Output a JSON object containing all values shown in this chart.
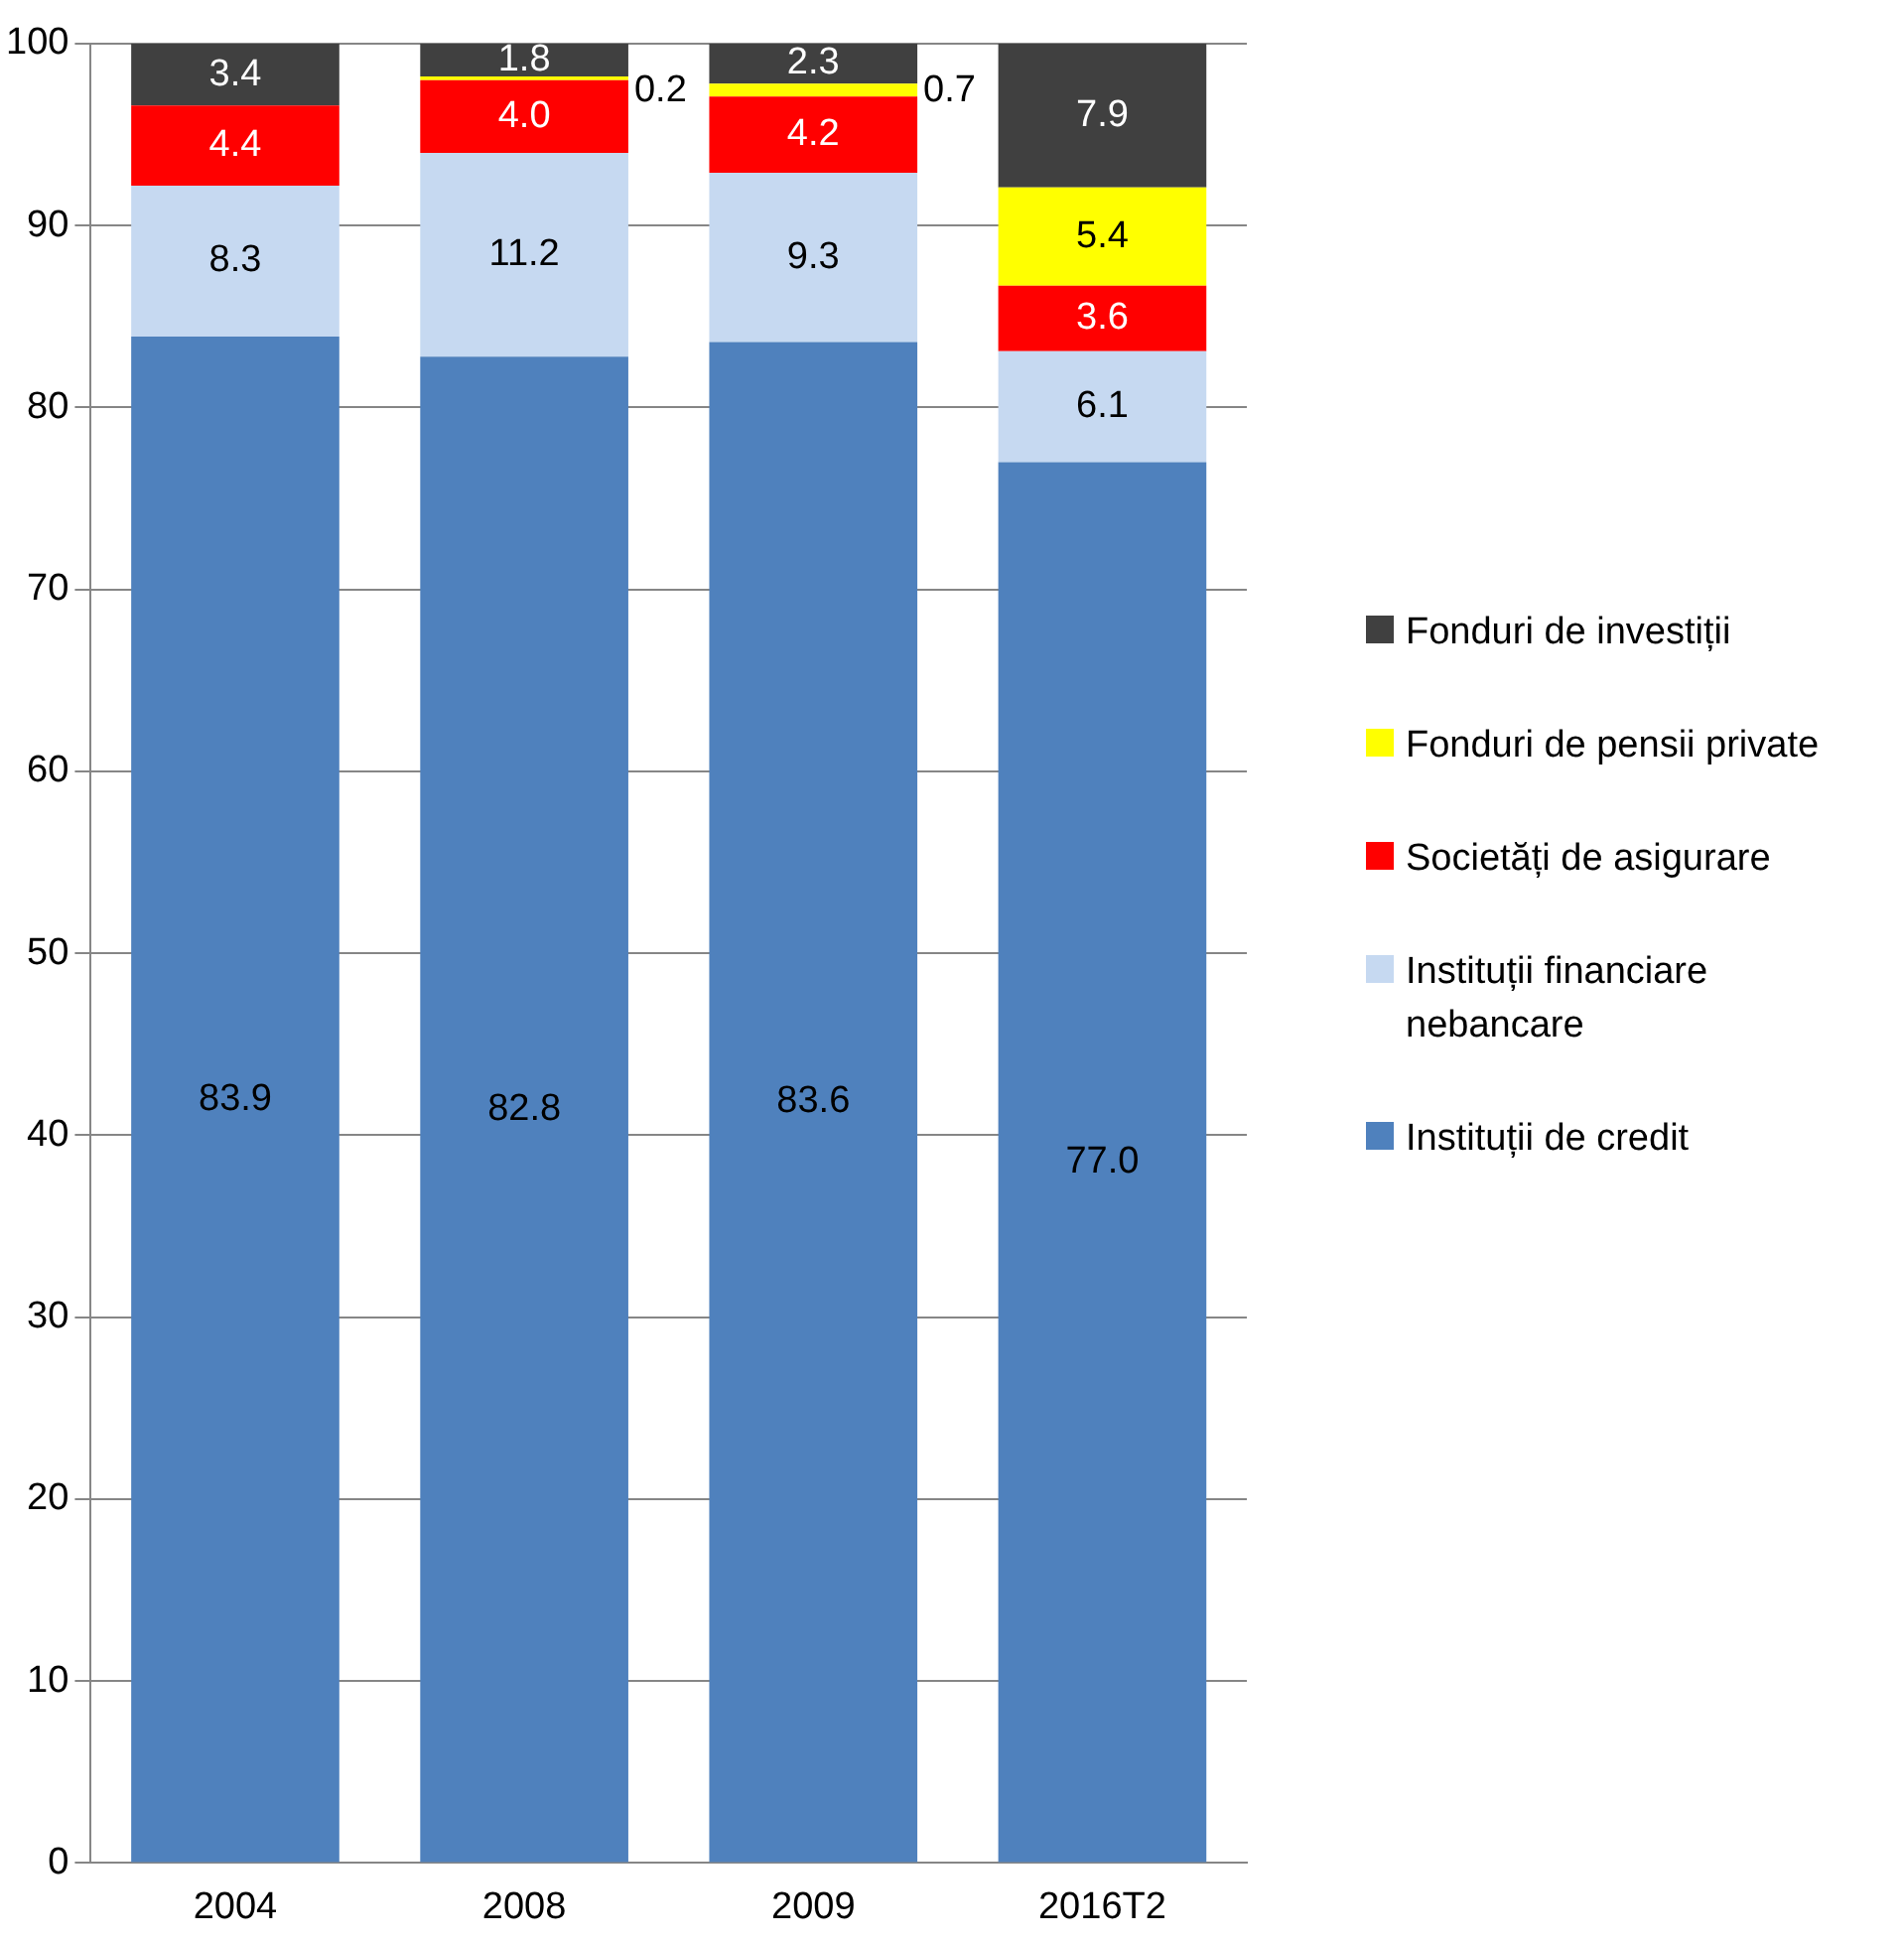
{
  "chart_data": {
    "type": "bar",
    "stacked": true,
    "categories": [
      "2004",
      "2008",
      "2009",
      "2016T2"
    ],
    "series": [
      {
        "name": "Instituții de credit",
        "color": "#4f81bd",
        "values": [
          83.9,
          82.8,
          83.6,
          77.0
        ],
        "value_labels": [
          "83.9",
          "82.8",
          "83.6",
          "77.0"
        ]
      },
      {
        "name": "Instituții financiare nebancare",
        "color": "#c6d9f1",
        "values": [
          8.3,
          11.2,
          9.3,
          6.1
        ],
        "value_labels": [
          "8.3",
          "11.2",
          "9.3",
          "6.1"
        ]
      },
      {
        "name": "Societăți de asigurare",
        "color": "#ff0000",
        "values": [
          4.4,
          4.0,
          4.2,
          3.6
        ],
        "value_labels": [
          "4.4",
          "4.0",
          "4.2",
          "3.6"
        ]
      },
      {
        "name": "Fonduri de pensii private",
        "color": "#ffff00",
        "values": [
          null,
          0.2,
          0.7,
          5.4
        ],
        "value_labels": [
          null,
          "0.2",
          "0.7",
          "5.4"
        ]
      },
      {
        "name": "Fonduri de investiții",
        "color": "#404040",
        "values": [
          3.4,
          1.8,
          2.3,
          7.9
        ],
        "value_labels": [
          "3.4",
          "1.8",
          "2.3",
          "7.9"
        ]
      }
    ],
    "ylim": [
      0,
      100
    ],
    "yticks": [
      0,
      10,
      20,
      30,
      40,
      50,
      60,
      70,
      80,
      90,
      100
    ],
    "grid": "y",
    "legend": "right"
  }
}
